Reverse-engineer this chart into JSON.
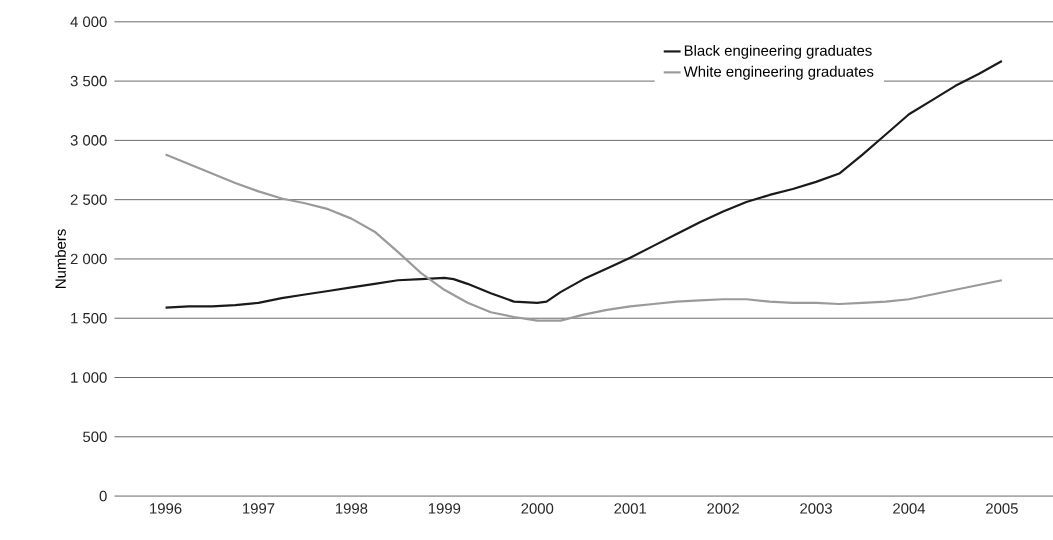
{
  "chart_data": {
    "type": "line",
    "ylabel": "Numbers",
    "xlim": [
      1995.45,
      2005.55
    ],
    "xticks": [
      1996,
      1997,
      1998,
      1999,
      2000,
      2001,
      2002,
      2003,
      2004,
      2005
    ],
    "ylim": [
      0,
      4000
    ],
    "yticks": [
      0,
      {
        "value": 500,
        "label": "500"
      },
      {
        "value": 1000,
        "label": "1 000"
      },
      {
        "value": 1500,
        "label": "1 500"
      },
      {
        "value": 2000,
        "label": "2 000"
      },
      {
        "value": 2500,
        "label": "2 500"
      },
      {
        "value": 3000,
        "label": "3 000"
      },
      {
        "value": 3500,
        "label": "3 500"
      },
      {
        "value": 4000,
        "label": "4 000"
      }
    ],
    "grid": "y",
    "legend": "top right",
    "marker": "none",
    "line_style": "solid",
    "series": [
      {
        "name": "Black engineering graduates",
        "color": "#1a1a1a",
        "x": [
          1996,
          1996.25,
          1996.5,
          1996.75,
          1997,
          1997.25,
          1997.5,
          1997.75,
          1998,
          1998.25,
          1998.5,
          1998.75,
          1999,
          1999.1,
          1999.25,
          1999.5,
          1999.75,
          2000,
          2000.1,
          2000.25,
          2000.5,
          2000.75,
          2001,
          2001.25,
          2001.5,
          2001.75,
          2002,
          2002.25,
          2002.5,
          2002.75,
          2003,
          2003.25,
          2003.5,
          2003.75,
          2004,
          2004.25,
          2004.5,
          2004.75,
          2005
        ],
        "values": [
          1590,
          1600,
          1600,
          1610,
          1630,
          1670,
          1700,
          1730,
          1760,
          1790,
          1820,
          1830,
          1840,
          1830,
          1790,
          1710,
          1640,
          1630,
          1640,
          1720,
          1830,
          1920,
          2010,
          2110,
          2210,
          2310,
          2400,
          2480,
          2540,
          2590,
          2650,
          2720,
          2880,
          3050,
          3220,
          3340,
          3460,
          3560,
          3670
        ]
      },
      {
        "name": "White engineering graduates",
        "color": "#9a9a9a",
        "x": [
          1996,
          1996.25,
          1996.5,
          1996.75,
          1997,
          1997.25,
          1997.5,
          1997.75,
          1998,
          1998.25,
          1998.5,
          1998.75,
          1999,
          1999.25,
          1999.5,
          1999.75,
          2000,
          2000.25,
          2000.5,
          2000.75,
          2001,
          2001.25,
          2001.5,
          2001.75,
          2002,
          2002.25,
          2002.5,
          2002.75,
          2003,
          2003.25,
          2003.5,
          2003.75,
          2004,
          2004.25,
          2004.5,
          2004.75,
          2005
        ],
        "values": [
          2880,
          2800,
          2720,
          2640,
          2570,
          2510,
          2470,
          2420,
          2340,
          2230,
          2060,
          1880,
          1740,
          1630,
          1550,
          1510,
          1480,
          1480,
          1530,
          1570,
          1600,
          1620,
          1640,
          1650,
          1660,
          1660,
          1640,
          1630,
          1630,
          1620,
          1630,
          1640,
          1660,
          1700,
          1740,
          1780,
          1820
        ]
      }
    ]
  }
}
